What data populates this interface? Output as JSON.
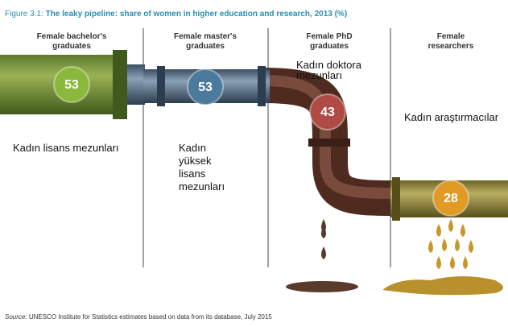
{
  "header": {
    "prefix": "Figure 3.1:",
    "title": "The leaky pipeline: share of women in higher education and research, 2013 (%)"
  },
  "stages": [
    {
      "label": [
        "Female bachelor's",
        "graduates"
      ],
      "value": 53,
      "local_label": [
        "Kadın lisans mezunları"
      ]
    },
    {
      "label": [
        "Female master's",
        "graduates"
      ],
      "value": 53,
      "local_label": [
        "Kadın",
        "yüksek",
        "lisans",
        "mezunları"
      ]
    },
    {
      "label": [
        "Female PhD",
        "graduates"
      ],
      "value": 43,
      "local_label": [
        "Kadın doktora",
        "mezunları"
      ]
    },
    {
      "label": [
        "Female",
        "researchers"
      ],
      "value": 28,
      "local_label": [
        "Kadın araştırmacılar"
      ]
    }
  ],
  "source": {
    "prefix": "Source:",
    "text": "UNESCO Institute for Statistics estimates based on data from its database, July 2015"
  }
}
